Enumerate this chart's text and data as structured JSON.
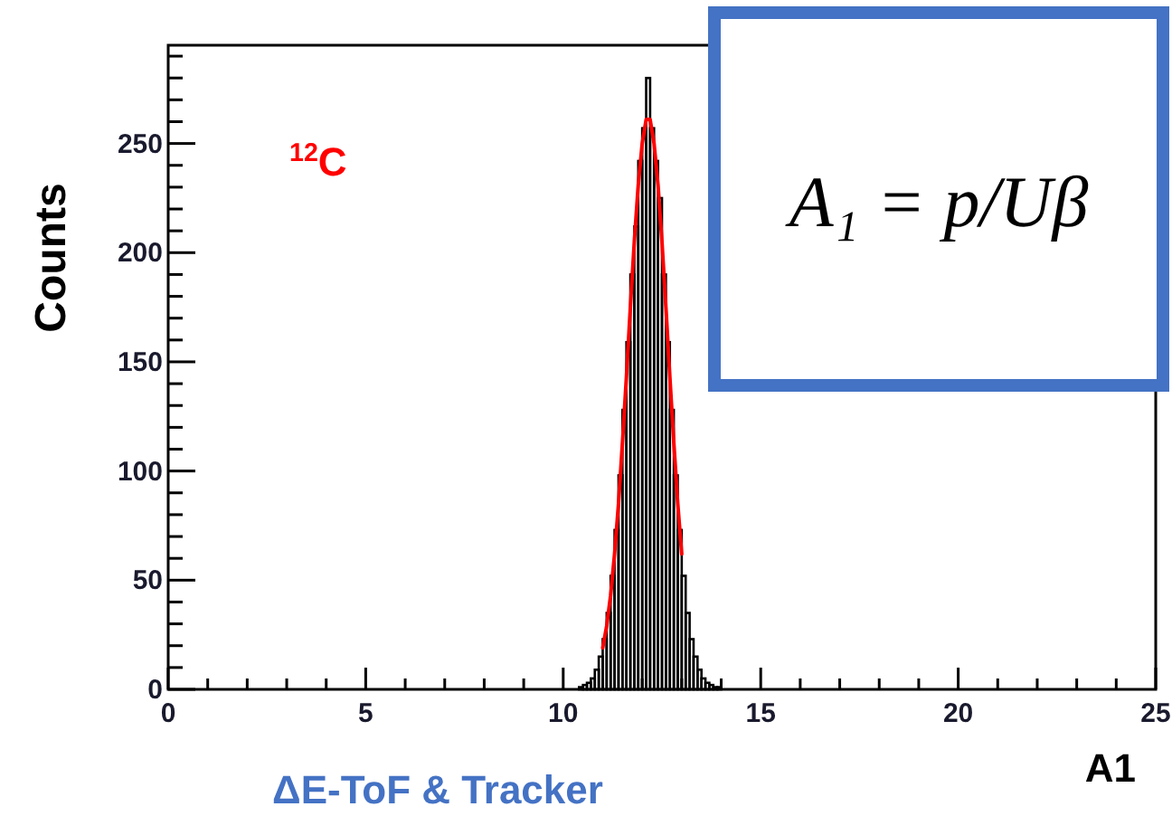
{
  "chart_data": {
    "type": "histogram",
    "xlabel": "A1",
    "ylabel": "Counts",
    "color": "#000000",
    "bins": [
      10.4,
      10.5,
      10.6,
      10.7,
      10.8,
      10.9,
      11.0,
      11.1,
      11.2,
      11.3,
      11.4,
      11.5,
      11.6,
      11.7,
      11.8,
      11.9,
      12.0,
      12.1,
      12.2,
      12.3,
      12.4,
      12.5,
      12.6,
      12.7,
      12.8,
      12.9,
      13.0,
      13.1,
      13.2,
      13.3,
      13.4,
      13.5,
      13.6,
      13.7,
      13.8,
      13.9,
      14.0
    ],
    "values": [
      1,
      2,
      3,
      5,
      9,
      15,
      23,
      35,
      52,
      73,
      98,
      128,
      159,
      190,
      212,
      242,
      257,
      280,
      257,
      242,
      225,
      190,
      159,
      128,
      98,
      73,
      52,
      35,
      23,
      15,
      9,
      5,
      3,
      2,
      1,
      1
    ],
    "series": [
      {
        "type": "line",
        "color": "#ff0000",
        "x": [
          11.0,
          11.1,
          11.2,
          11.3,
          11.4,
          11.5,
          11.6,
          11.7,
          11.8,
          11.9,
          12.0,
          12.1,
          12.2,
          12.3,
          12.4,
          12.5,
          12.6,
          12.7,
          12.8,
          12.9,
          13.0
        ],
        "values": [
          19,
          29,
          43,
          62,
          85,
          113,
          143,
          175,
          205,
          231,
          250,
          261,
          261,
          250,
          231,
          205,
          175,
          143,
          113,
          85,
          62
        ]
      }
    ],
    "xlim": [
      0,
      25
    ],
    "xticks": [
      0,
      {
        "value": 1,
        "label": null
      },
      {
        "value": 2,
        "label": null
      },
      {
        "value": 3,
        "label": null
      },
      {
        "value": 4,
        "label": null
      },
      5,
      {
        "value": 6,
        "label": null
      },
      {
        "value": 7,
        "label": null
      },
      {
        "value": 8,
        "label": null
      },
      {
        "value": 9,
        "label": null
      },
      10,
      {
        "value": 11,
        "label": null
      },
      {
        "value": 12,
        "label": null
      },
      {
        "value": 13,
        "label": null
      },
      {
        "value": 14,
        "label": null
      },
      15,
      {
        "value": 16,
        "label": null
      },
      {
        "value": 17,
        "label": null
      },
      {
        "value": 18,
        "label": null
      },
      {
        "value": 19,
        "label": null
      },
      20,
      {
        "value": 21,
        "label": null
      },
      {
        "value": 22,
        "label": null
      },
      {
        "value": 23,
        "label": null
      },
      {
        "value": 24,
        "label": null
      },
      25
    ],
    "ylim": [
      0,
      295
    ],
    "yticks": [
      0,
      {
        "value": 10,
        "label": null
      },
      {
        "value": 20,
        "label": null
      },
      {
        "value": 30,
        "label": null
      },
      {
        "value": 40,
        "label": null
      },
      50,
      {
        "value": 60,
        "label": null
      },
      {
        "value": 70,
        "label": null
      },
      {
        "value": 80,
        "label": null
      },
      {
        "value": 90,
        "label": null
      },
      100,
      {
        "value": 110,
        "label": null
      },
      {
        "value": 120,
        "label": null
      },
      {
        "value": 130,
        "label": null
      },
      {
        "value": 140,
        "label": null
      },
      150,
      {
        "value": 160,
        "label": null
      },
      {
        "value": 170,
        "label": null
      },
      {
        "value": 180,
        "label": null
      },
      {
        "value": 190,
        "label": null
      },
      200,
      {
        "value": 210,
        "label": null
      },
      {
        "value": 220,
        "label": null
      },
      {
        "value": 230,
        "label": null
      },
      {
        "value": 240,
        "label": null
      },
      250,
      {
        "value": 260,
        "label": null
      },
      {
        "value": 270,
        "label": null
      },
      {
        "value": 280,
        "label": null
      },
      {
        "value": 290,
        "label": null
      }
    ],
    "annotations": [
      "$^{12}$C",
      "A₁ = p/Uβ",
      "ΔE-ToF & Tracker"
    ]
  }
}
